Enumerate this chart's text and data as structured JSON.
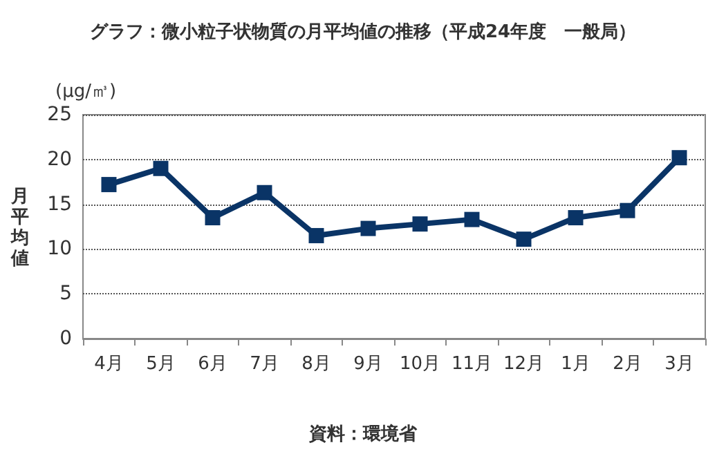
{
  "chart_data": {
    "type": "line",
    "title": "グラフ：微小粒子状物質の月平均値の推移（平成24年度　一般局）",
    "ylabel": "月平均値",
    "annotations": [
      "(μg/㎥)",
      "資料：環境省"
    ],
    "categories": [
      "4月",
      "5月",
      "6月",
      "7月",
      "8月",
      "9月",
      "10月",
      "11月",
      "12月",
      "1月",
      "2月",
      "3月"
    ],
    "series": [
      {
        "color": "#0a3466",
        "values": [
          17.2,
          19.0,
          13.5,
          16.3,
          11.5,
          12.3,
          12.8,
          13.3,
          11.1,
          13.5,
          14.3,
          20.2
        ]
      }
    ],
    "ylim": [
      0,
      25
    ],
    "yticks": [
      0,
      5,
      10,
      15,
      20,
      25
    ],
    "grid": "y",
    "marker": "square",
    "line_style": "solid"
  }
}
